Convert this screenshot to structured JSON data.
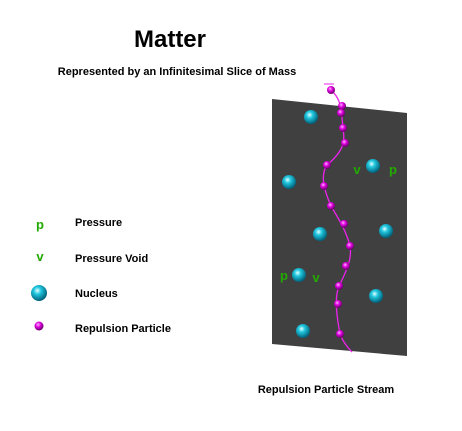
{
  "header": {
    "title": "Matter",
    "subtitle": "Represented by an Infinitesimal Slice of Mass"
  },
  "legend": [
    {
      "symbol": "p",
      "label": "Pressure"
    },
    {
      "symbol": "v",
      "label": "Pressure Void"
    },
    {
      "label": "Nucleus"
    },
    {
      "label": "Repulsion Particle"
    }
  ],
  "slab_labels": [
    "v",
    "p",
    "p",
    "v"
  ],
  "caption": "Repulsion Particle Stream"
}
